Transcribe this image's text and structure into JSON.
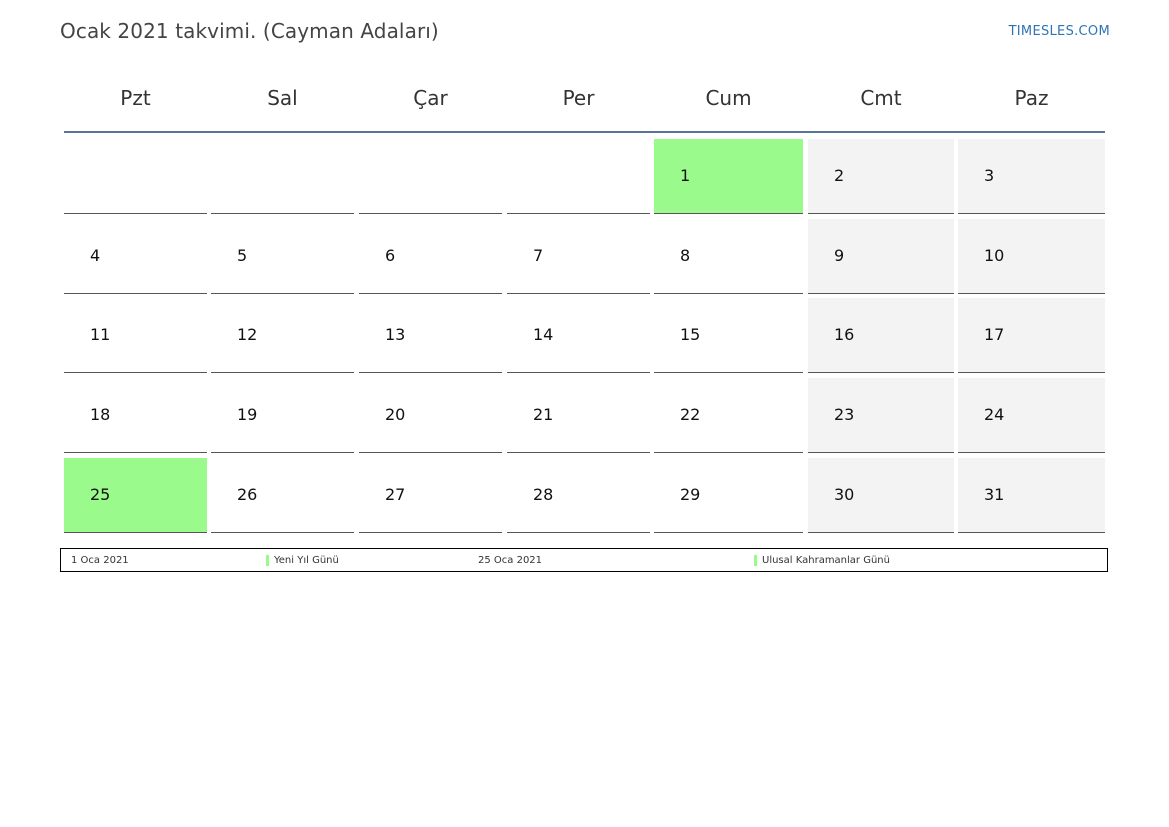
{
  "header": {
    "title": "Ocak 2021 takvimi. (Cayman Adaları)",
    "brand": "TIMESLES.COM"
  },
  "weekdays": [
    "Pzt",
    "Sal",
    "Çar",
    "Per",
    "Cum",
    "Cmt",
    "Paz"
  ],
  "weeks": [
    [
      "",
      "",
      "",
      "",
      "1",
      "2",
      "3"
    ],
    [
      "4",
      "5",
      "6",
      "7",
      "8",
      "9",
      "10"
    ],
    [
      "11",
      "12",
      "13",
      "14",
      "15",
      "16",
      "17"
    ],
    [
      "18",
      "19",
      "20",
      "21",
      "22",
      "23",
      "24"
    ],
    [
      "25",
      "26",
      "27",
      "28",
      "29",
      "30",
      "31"
    ]
  ],
  "holiday_days": [
    "1",
    "25"
  ],
  "colors": {
    "holiday": "#9afb8c",
    "weekend": "#f3f3f3",
    "header_rule": "#5a7399",
    "brand": "#2e74b5"
  },
  "legend": [
    {
      "date": "1 Oca 2021",
      "name": "Yeni Yıl Günü"
    },
    {
      "date": "25 Oca 2021",
      "name": "Ulusal Kahramanlar Günü"
    }
  ]
}
